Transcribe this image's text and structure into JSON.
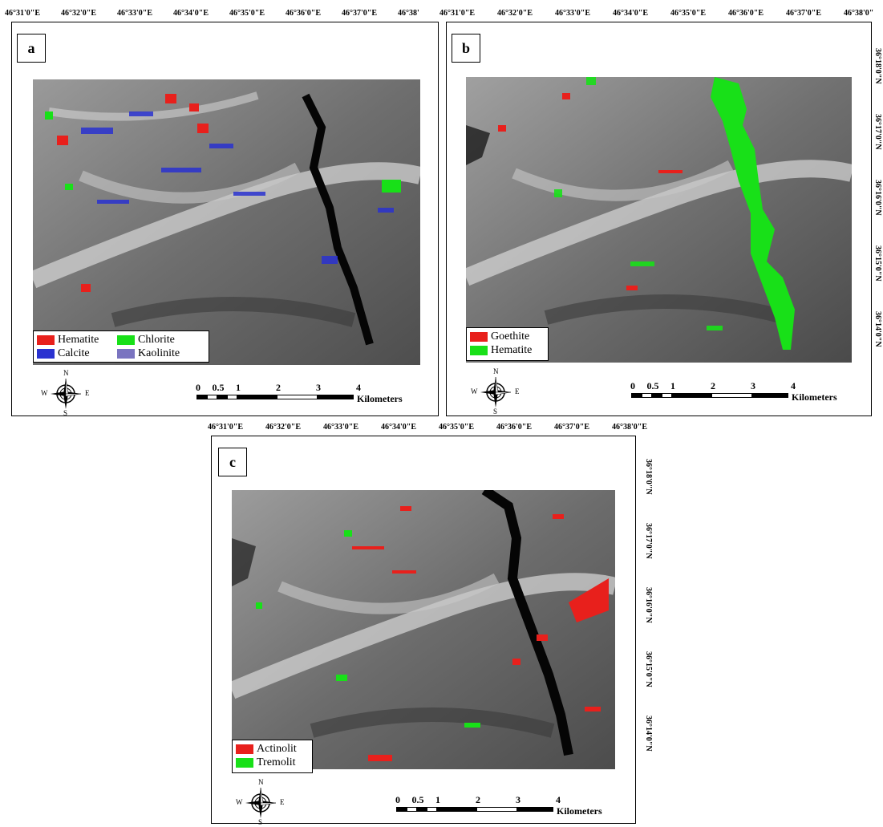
{
  "panels": {
    "a": {
      "letter": "a",
      "top_coords": [
        "46°31'0\"E",
        "46°32'0\"E",
        "46°33'0\"E",
        "46°34'0\"E",
        "46°35'0\"E",
        "46°36'0\"E",
        "46°37'0\"E",
        "46°38'"
      ],
      "legend": [
        {
          "label": "Hematite",
          "color": "#e8201c"
        },
        {
          "label": "Chlorite",
          "color": "#18e018"
        },
        {
          "label": "Calcite",
          "color": "#2a32d0"
        },
        {
          "label": "Kaolinite",
          "color": "#7a74c0"
        }
      ]
    },
    "b": {
      "letter": "b",
      "top_coords": [
        "46°31'0\"E",
        "46°32'0\"E",
        "46°33'0\"E",
        "46°34'0\"E",
        "46°35'0\"E",
        "46°36'0\"E",
        "46°37'0\"E",
        "46°38'0\""
      ],
      "right_coords": [
        "36°18'0\"N",
        "36°17'0\"N",
        "36°16'0\"N",
        "36°15'0\"N",
        "36°14'0\"N"
      ],
      "legend": [
        {
          "label": "Goethite",
          "color": "#e8201c"
        },
        {
          "label": "Hematite",
          "color": "#18e018"
        }
      ]
    },
    "c": {
      "letter": "c",
      "top_coords": [
        "46°31'0\"E",
        "46°32'0\"E",
        "46°33'0\"E",
        "46°34'0\"E",
        "46°35'0\"E",
        "46°36'0\"E",
        "46°37'0\"E",
        "46°38'0\"E"
      ],
      "right_coords": [
        "36°18'0\"N",
        "36°17'0\"N",
        "36°16'0\"N",
        "36°15'0\"N",
        "36°14'0\"N"
      ],
      "legend": [
        {
          "label": "Actinolit",
          "color": "#e8201c"
        },
        {
          "label": "Tremolit",
          "color": "#18e018"
        }
      ]
    }
  },
  "compass": {
    "n": "N",
    "s": "S",
    "e": "E",
    "w": "W"
  },
  "scale": {
    "ticks": [
      "0",
      "0.5",
      "1",
      "2",
      "3",
      "4"
    ],
    "unit": "Kilometers"
  }
}
